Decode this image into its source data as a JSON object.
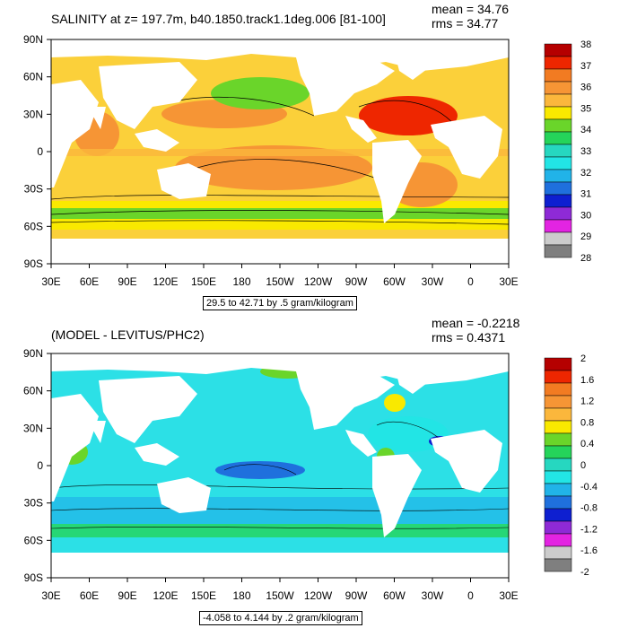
{
  "panels": [
    {
      "title": "SALINITY at z= 197.7m, b40.1850.track1.1deg.006 [81-100]",
      "mean": "mean = 34.76",
      "rms": "rms = 34.77",
      "range_label": "29.5 to 42.71 by .5 gram/kilogram",
      "ocean_color": "#fbd03a",
      "colorbar": {
        "labels": [
          "38",
          "37",
          "36",
          "35",
          "34",
          "33",
          "32",
          "31",
          "30",
          "29",
          "28"
        ],
        "colors": [
          "#b50000",
          "#ee2600",
          "#f27b22",
          "#f69535",
          "#fbb73c",
          "#f9e900",
          "#6ad52a",
          "#25d45a",
          "#26d7c0",
          "#22e5e5",
          "#21b3e8",
          "#1f70dd",
          "#0e1fd0",
          "#8e2ad6",
          "#e324e2",
          "#cccccc",
          "#7f7f7f"
        ]
      }
    },
    {
      "title": "(MODEL - LEVITUS/PHC2)",
      "mean": "mean = -0.2218",
      "rms": "rms = 0.4371",
      "range_label": "-4.058 to 4.144 by .2 gram/kilogram",
      "ocean_color": "#2ce0e6",
      "colorbar": {
        "labels": [
          "2",
          "1.6",
          "1.2",
          "0.8",
          "0.4",
          "0",
          "-0.4",
          "-0.8",
          "-1.2",
          "-1.6",
          "-2"
        ],
        "colors": [
          "#b50000",
          "#ee2600",
          "#f27b22",
          "#f69535",
          "#fbb73c",
          "#f9e900",
          "#6ad52a",
          "#25d45a",
          "#26d7c0",
          "#22e5e5",
          "#21b3e8",
          "#1f70dd",
          "#0e1fd0",
          "#8e2ad6",
          "#e324e2",
          "#cccccc",
          "#7f7f7f"
        ]
      }
    }
  ],
  "axes": {
    "lat_labels": [
      "90N",
      "60N",
      "30N",
      "0",
      "30S",
      "60S",
      "90S"
    ],
    "lon_labels": [
      "30E",
      "60E",
      "90E",
      "120E",
      "150E",
      "180",
      "150W",
      "120W",
      "90W",
      "60W",
      "30W",
      "0",
      "30E"
    ]
  }
}
